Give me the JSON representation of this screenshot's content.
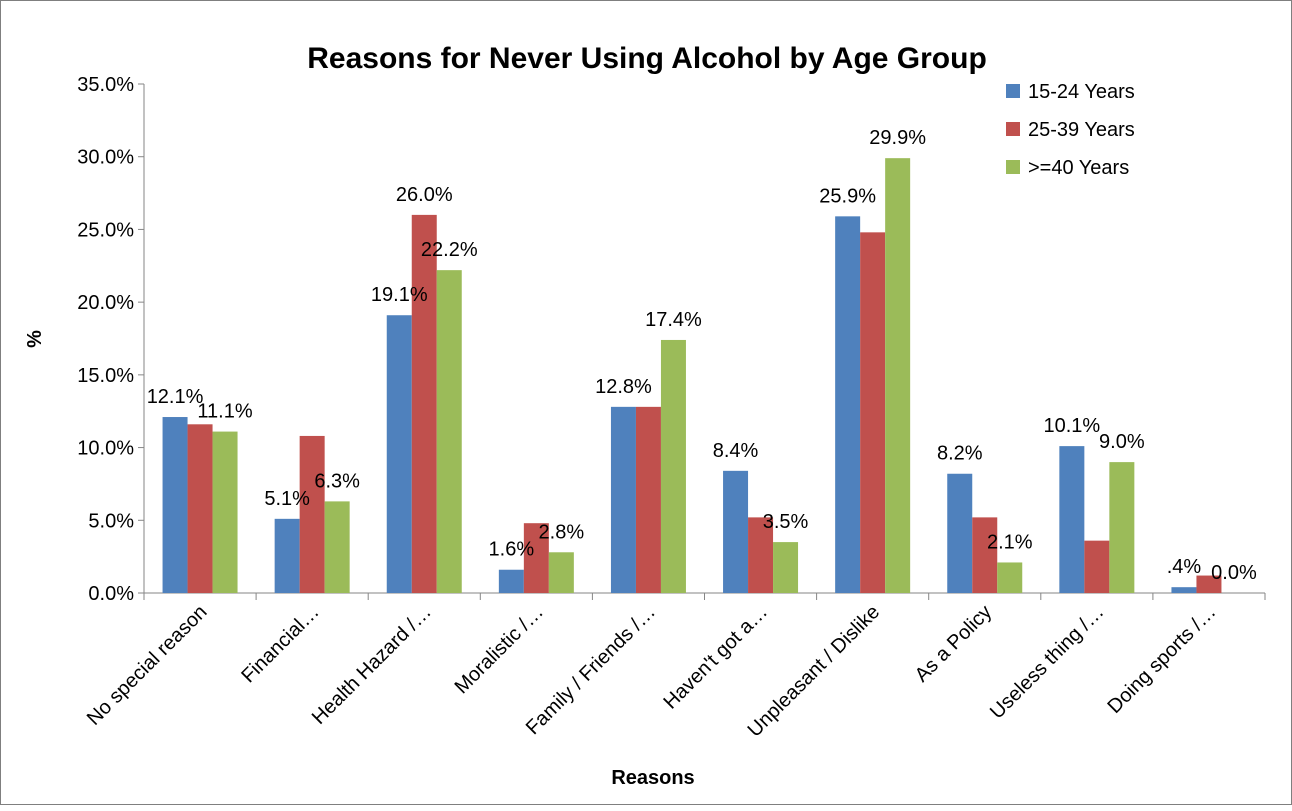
{
  "chart_data": {
    "type": "bar",
    "title": "Reasons for Never Using Alcohol by Age Group",
    "xlabel": "Reasons",
    "ylabel": "%",
    "ylim": [
      0,
      35
    ],
    "ytick_step": 5,
    "ytick_labels": [
      "0.0%",
      "5.0%",
      "10.0%",
      "15.0%",
      "20.0%",
      "25.0%",
      "30.0%",
      "35.0%"
    ],
    "grid": false,
    "legend_position": "top-right",
    "categories": [
      "No special reason",
      "Financial…",
      "Health Hazard /…",
      "Moralistic /…",
      "Family / Friends /…",
      "Haven't got a…",
      "Unpleasant / Dislike",
      "As a Policy",
      "Useless thing /…",
      "Doing sports /…"
    ],
    "series": [
      {
        "name": "15-24 Years",
        "color": "#4f81bd",
        "values": [
          12.1,
          5.1,
          19.1,
          1.6,
          12.8,
          8.4,
          25.9,
          8.2,
          10.1,
          0.4
        ],
        "labels": [
          "12.1%",
          "5.1%",
          "19.1%",
          "1.6%",
          "12.8%",
          "8.4%",
          "25.9%",
          "8.2%",
          "10.1%",
          ".4%"
        ]
      },
      {
        "name": "25-39 Years",
        "color": "#c0504d",
        "values": [
          11.6,
          10.8,
          26.0,
          4.8,
          12.8,
          5.2,
          24.8,
          5.2,
          3.6,
          1.2
        ],
        "labels": [
          "",
          "",
          "26.0%",
          "",
          "",
          "",
          "",
          "",
          "",
          ""
        ]
      },
      {
        "name": ">=40 Years",
        "color": "#9bbb59",
        "values": [
          11.1,
          6.3,
          22.2,
          2.8,
          17.4,
          3.5,
          29.9,
          2.1,
          9.0,
          0.0
        ],
        "labels": [
          "11.1%",
          "6.3%",
          "22.2%",
          "2.8%",
          "17.4%",
          "3.5%",
          "29.9%",
          "2.1%",
          "9.0%",
          "0.0%"
        ]
      }
    ]
  }
}
